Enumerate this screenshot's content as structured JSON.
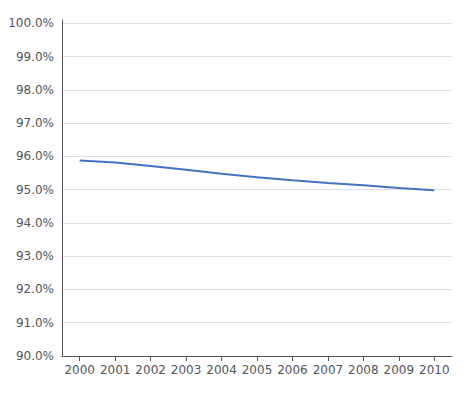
{
  "chart_data": {
    "type": "line",
    "x": [
      2000,
      2001,
      2002,
      2003,
      2004,
      2005,
      2006,
      2007,
      2008,
      2009,
      2010
    ],
    "values": [
      0.9588,
      0.9582,
      0.9571,
      0.956,
      0.9548,
      0.9537,
      0.9528,
      0.952,
      0.9513,
      0.9505,
      0.9498
    ],
    "color": "#4472C4",
    "xlim": [
      1999.5,
      2010.5
    ],
    "xticks": [
      2000,
      2001,
      2002,
      2003,
      2004,
      2005,
      2006,
      2007,
      2008,
      2009,
      2010
    ],
    "ylim": [
      0.9,
      1.001
    ],
    "yticks": [
      {
        "value": 0.9,
        "label": "90.0%"
      },
      {
        "value": 0.91,
        "label": "91.0%"
      },
      {
        "value": 0.92,
        "label": "92.0%"
      },
      {
        "value": 0.93,
        "label": "93.0%"
      },
      {
        "value": 0.94,
        "label": "94.0%"
      },
      {
        "value": 0.95,
        "label": "95.0%"
      },
      {
        "value": 0.96,
        "label": "96.0%"
      },
      {
        "value": 0.97,
        "label": "97.0%"
      },
      {
        "value": 0.98,
        "label": "98.0%"
      },
      {
        "value": 0.99,
        "label": "99.0%"
      },
      {
        "value": 1.0,
        "label": "100.0%"
      }
    ],
    "grid": true
  }
}
